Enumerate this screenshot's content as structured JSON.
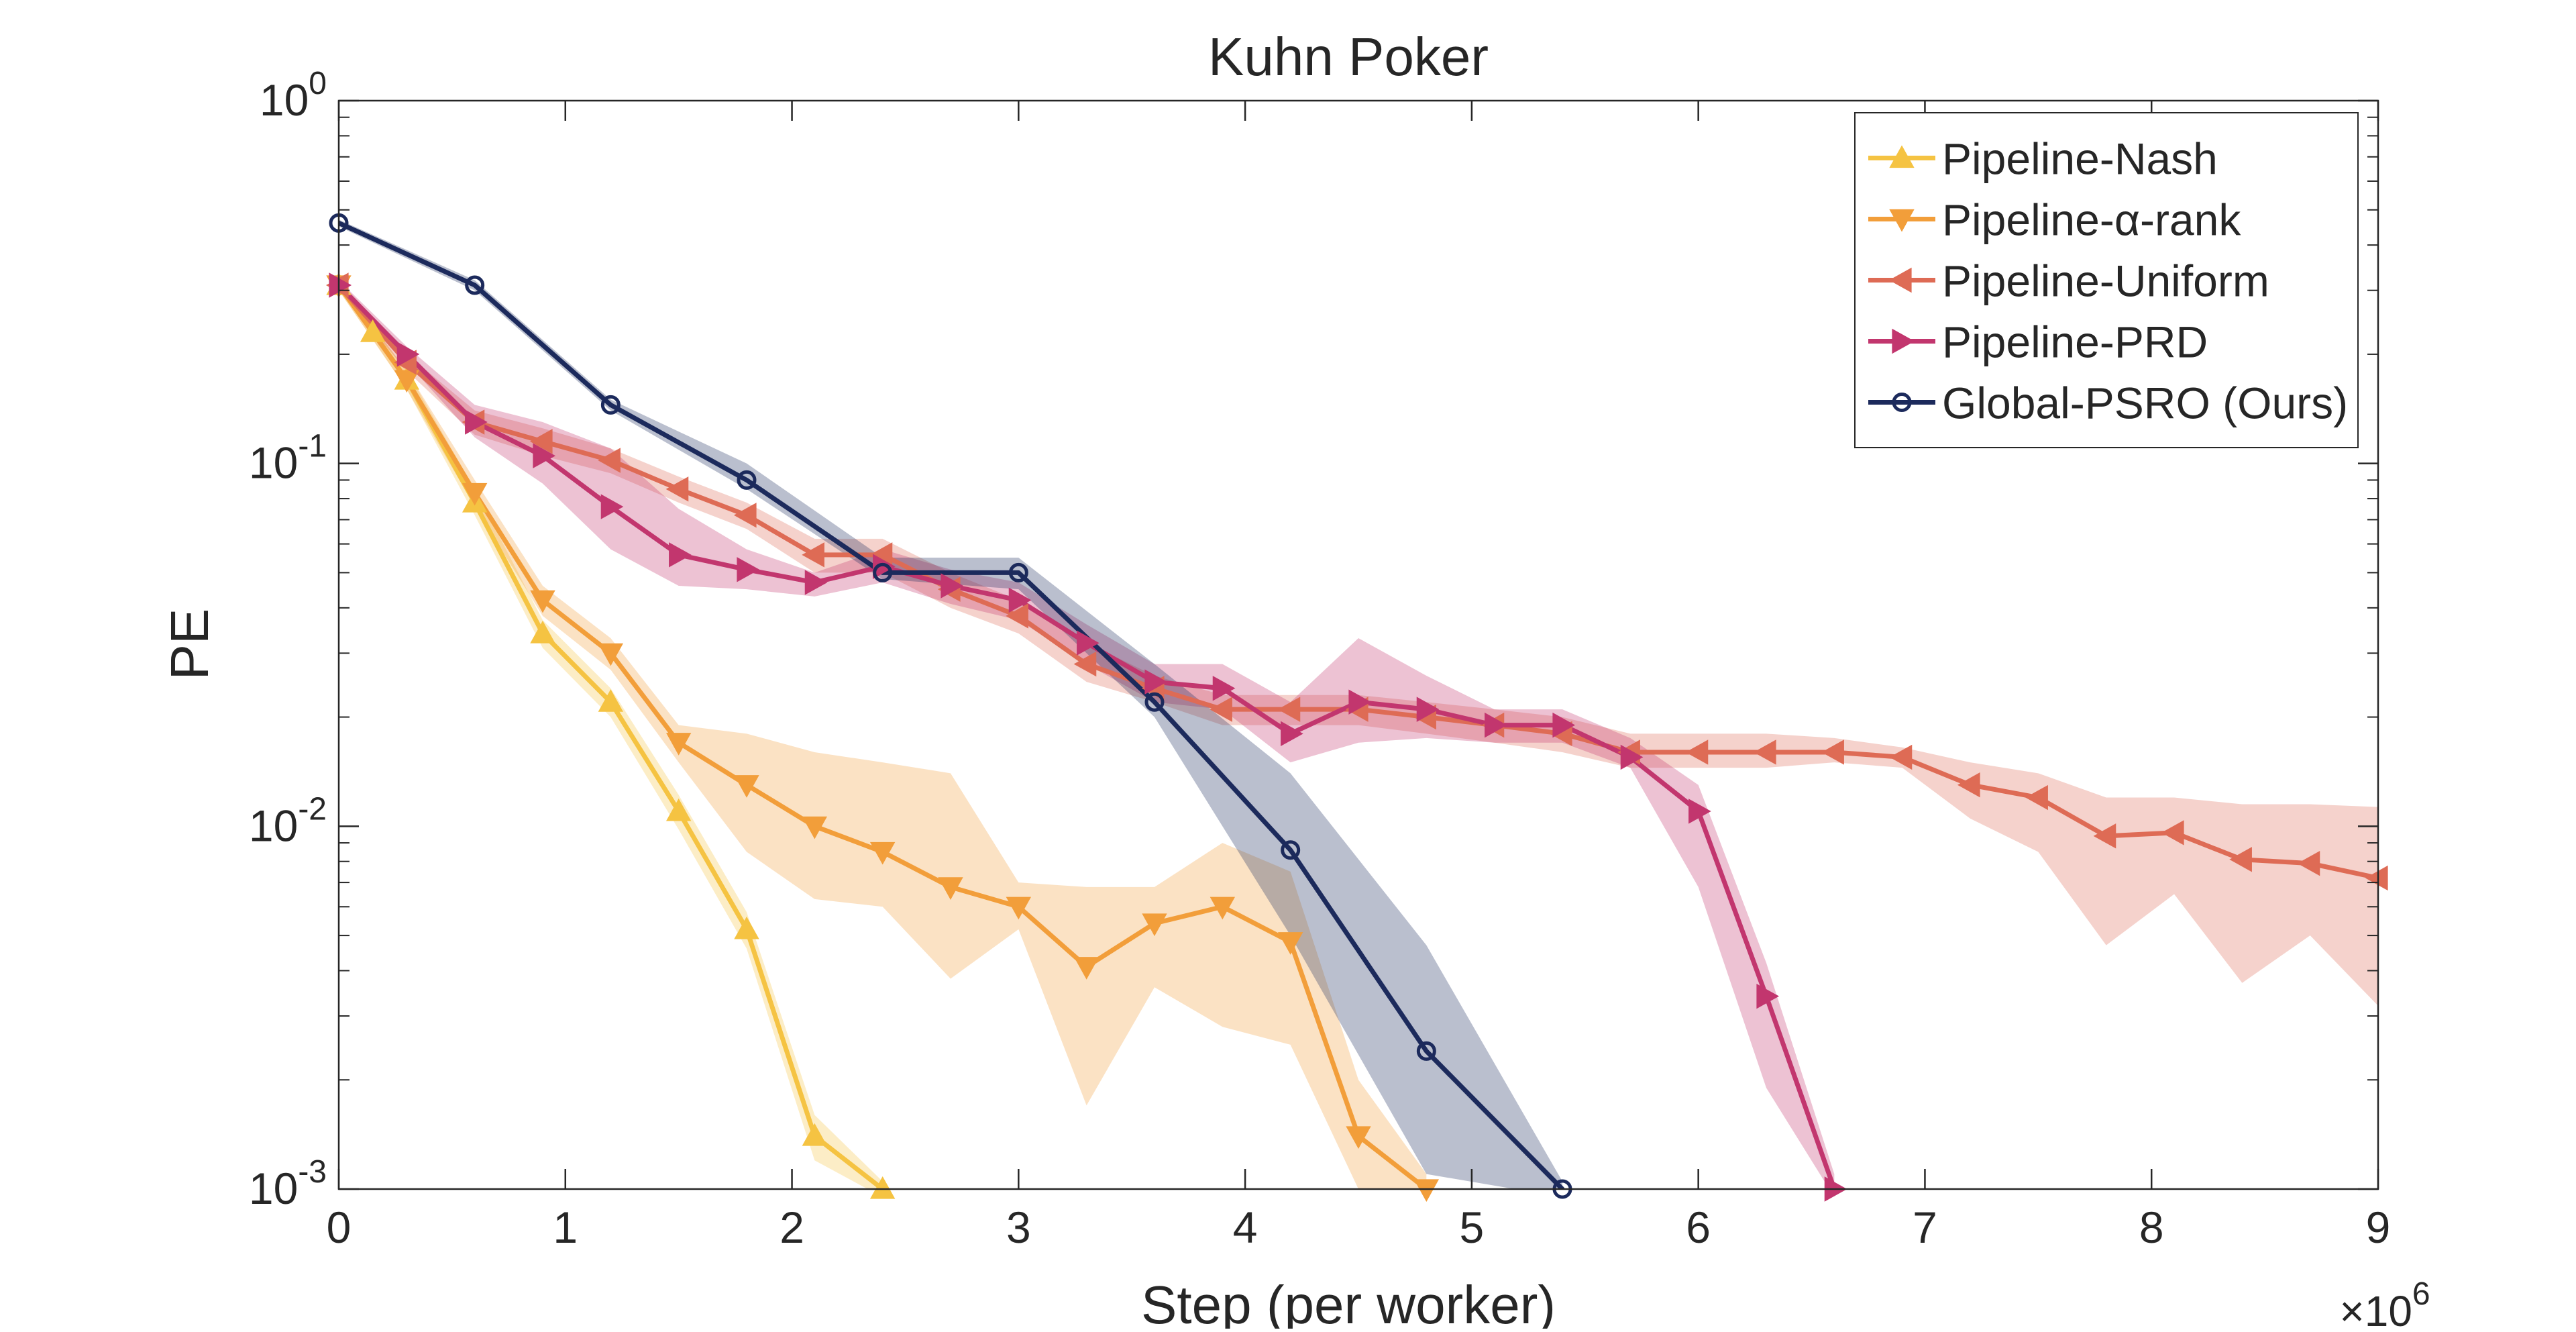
{
  "chart_data": {
    "type": "line",
    "title": "Kuhn Poker",
    "xlabel": "Step (per worker)",
    "ylabel": "PE",
    "x_exponent_label": "×10",
    "x_exponent_power": "6",
    "x_scale_factor": 1000000,
    "xlim": [
      0,
      9
    ],
    "ylim": [
      0.001,
      1
    ],
    "y_scale": "log",
    "x_ticks": [
      0,
      1,
      2,
      3,
      4,
      5,
      6,
      7,
      8,
      9
    ],
    "x_tick_labels": [
      "0",
      "1",
      "2",
      "3",
      "4",
      "5",
      "6",
      "7",
      "8",
      "9"
    ],
    "y_ticks": [
      0.001,
      0.01,
      0.1,
      1
    ],
    "y_tick_labels": [
      {
        "base": "10",
        "exp": "-3"
      },
      {
        "base": "10",
        "exp": "-2"
      },
      {
        "base": "10",
        "exp": "-1"
      },
      {
        "base": "10",
        "exp": "0"
      }
    ],
    "grid": false,
    "legend_position": "top-right",
    "series": [
      {
        "name": "Pipeline-Nash",
        "color": "#F5C342",
        "marker": "triangle-up",
        "x": [
          0,
          0.15,
          0.3,
          0.6,
          0.9,
          1.2,
          1.5,
          1.8,
          2.1,
          2.4
        ],
        "y": [
          0.31,
          0.23,
          0.17,
          0.078,
          0.034,
          0.022,
          0.011,
          0.0052,
          0.0014,
          0.001
        ],
        "band_upper": [
          0.32,
          0.24,
          0.18,
          0.085,
          0.037,
          0.024,
          0.0122,
          0.0058,
          0.0016,
          0.00105
        ],
        "band_lower": [
          0.3,
          0.22,
          0.16,
          0.072,
          0.031,
          0.02,
          0.0098,
          0.0046,
          0.0012,
          0.00095
        ]
      },
      {
        "name": "Pipeline-α-rank",
        "color": "#F29E3A",
        "marker": "triangle-down",
        "x": [
          0,
          0.3,
          0.6,
          0.9,
          1.2,
          1.5,
          1.8,
          2.1,
          2.4,
          2.7,
          3.0,
          3.3,
          3.6,
          3.9,
          4.2,
          4.5,
          4.8
        ],
        "y": [
          0.31,
          0.17,
          0.083,
          0.042,
          0.03,
          0.017,
          0.013,
          0.01,
          0.0085,
          0.0068,
          0.006,
          0.0041,
          0.0054,
          0.006,
          0.0048,
          0.0014,
          0.001
        ],
        "band_upper": [
          0.32,
          0.18,
          0.09,
          0.046,
          0.033,
          0.019,
          0.018,
          0.016,
          0.015,
          0.014,
          0.007,
          0.0068,
          0.0068,
          0.009,
          0.0075,
          0.002,
          0.0011
        ],
        "band_lower": [
          0.3,
          0.16,
          0.076,
          0.038,
          0.027,
          0.015,
          0.0085,
          0.0063,
          0.006,
          0.0038,
          0.0052,
          0.0017,
          0.0036,
          0.0028,
          0.0025,
          0.001,
          0.00095
        ]
      },
      {
        "name": "Pipeline-Uniform",
        "color": "#DE6B55",
        "marker": "triangle-left",
        "x": [
          0,
          0.3,
          0.6,
          0.9,
          1.2,
          1.5,
          1.8,
          2.1,
          2.4,
          2.7,
          3.0,
          3.3,
          3.6,
          3.9,
          4.2,
          4.5,
          4.8,
          5.1,
          5.4,
          5.7,
          6.0,
          6.3,
          6.6,
          6.9,
          7.2,
          7.5,
          7.8,
          8.1,
          8.4,
          8.7,
          9.0
        ],
        "y": [
          0.31,
          0.19,
          0.13,
          0.115,
          0.102,
          0.085,
          0.072,
          0.056,
          0.056,
          0.045,
          0.038,
          0.028,
          0.024,
          0.021,
          0.021,
          0.021,
          0.02,
          0.019,
          0.018,
          0.016,
          0.016,
          0.016,
          0.016,
          0.0155,
          0.013,
          0.012,
          0.0094,
          0.0096,
          0.0081,
          0.0079,
          0.0072
        ],
        "band_upper": [
          0.32,
          0.2,
          0.14,
          0.125,
          0.11,
          0.092,
          0.078,
          0.062,
          0.062,
          0.05,
          0.042,
          0.032,
          0.026,
          0.023,
          0.023,
          0.023,
          0.022,
          0.021,
          0.02,
          0.018,
          0.018,
          0.018,
          0.0175,
          0.0165,
          0.015,
          0.014,
          0.012,
          0.012,
          0.0115,
          0.0115,
          0.0113
        ],
        "band_lower": [
          0.3,
          0.18,
          0.12,
          0.105,
          0.094,
          0.078,
          0.066,
          0.05,
          0.05,
          0.04,
          0.034,
          0.025,
          0.022,
          0.019,
          0.019,
          0.019,
          0.018,
          0.017,
          0.016,
          0.0145,
          0.0145,
          0.0145,
          0.015,
          0.0145,
          0.0105,
          0.0085,
          0.0047,
          0.0065,
          0.0037,
          0.005,
          0.0032
        ]
      },
      {
        "name": "Pipeline-PRD",
        "color": "#C2366E",
        "marker": "triangle-right",
        "x": [
          0,
          0.3,
          0.6,
          0.9,
          1.2,
          1.5,
          1.8,
          2.1,
          2.4,
          2.7,
          3.0,
          3.3,
          3.6,
          3.9,
          4.2,
          4.5,
          4.8,
          5.1,
          5.4,
          5.7,
          6.0,
          6.3,
          6.6
        ],
        "y": [
          0.31,
          0.2,
          0.13,
          0.105,
          0.076,
          0.056,
          0.051,
          0.047,
          0.052,
          0.046,
          0.042,
          0.032,
          0.025,
          0.024,
          0.018,
          0.022,
          0.021,
          0.019,
          0.019,
          0.0155,
          0.011,
          0.0034,
          0.001
        ],
        "band_upper": [
          0.32,
          0.21,
          0.145,
          0.13,
          0.11,
          0.075,
          0.058,
          0.05,
          0.058,
          0.051,
          0.047,
          0.036,
          0.028,
          0.028,
          0.022,
          0.033,
          0.026,
          0.021,
          0.021,
          0.0175,
          0.013,
          0.0042,
          0.0011
        ],
        "band_lower": [
          0.3,
          0.19,
          0.118,
          0.088,
          0.058,
          0.046,
          0.045,
          0.043,
          0.047,
          0.041,
          0.037,
          0.028,
          0.022,
          0.021,
          0.015,
          0.017,
          0.0175,
          0.017,
          0.017,
          0.0145,
          0.0068,
          0.0019,
          0.00095
        ]
      },
      {
        "name": "Global-PSRO (Ours)",
        "color": "#1C2A5C",
        "marker": "circle",
        "x": [
          0,
          0.6,
          1.2,
          1.8,
          2.4,
          3.0,
          3.6,
          4.2,
          4.8,
          5.4
        ],
        "y": [
          0.46,
          0.31,
          0.145,
          0.09,
          0.05,
          0.05,
          0.022,
          0.0086,
          0.0024,
          0.001
        ],
        "band_upper": [
          0.47,
          0.32,
          0.15,
          0.1,
          0.055,
          0.055,
          0.028,
          0.014,
          0.0047,
          0.00105
        ],
        "band_lower": [
          0.45,
          0.3,
          0.14,
          0.085,
          0.048,
          0.045,
          0.02,
          0.005,
          0.0011,
          0.00095
        ]
      }
    ]
  }
}
